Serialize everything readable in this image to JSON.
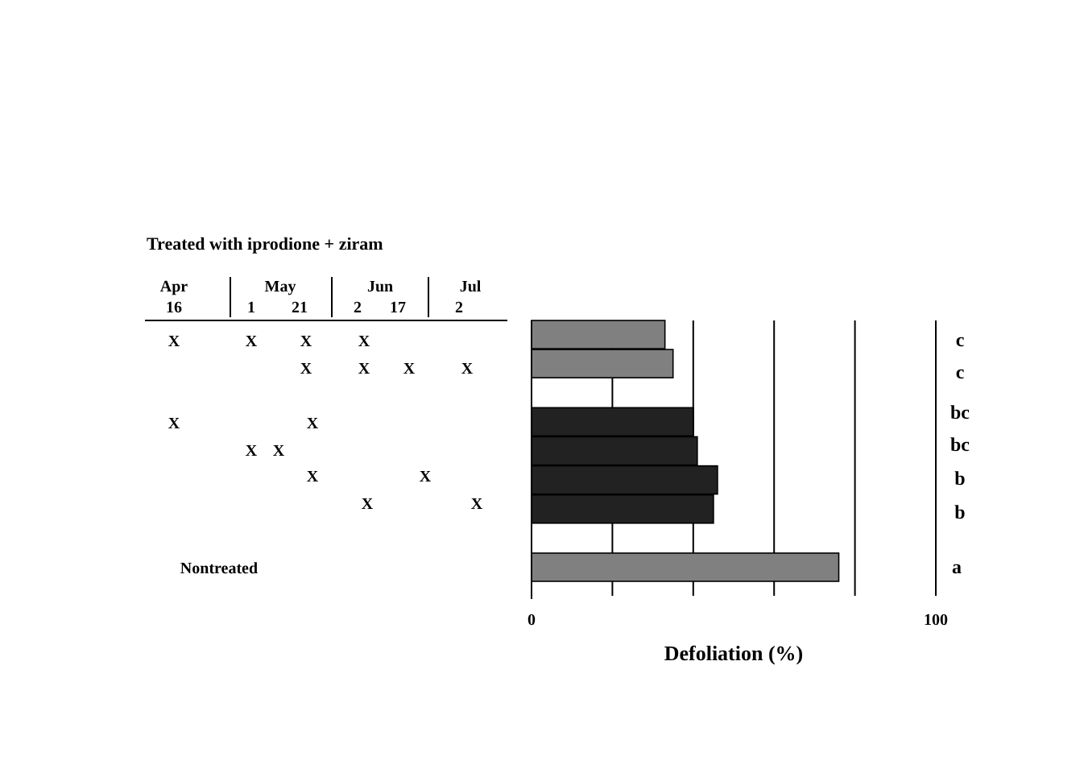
{
  "chart_data": {
    "type": "bar",
    "orientation": "horizontal",
    "title": "Treated with iprodione + ziram",
    "xlabel": "Defoliation (%)",
    "categories": [
      null,
      null,
      null,
      null,
      null,
      null,
      null,
      null,
      null
    ],
    "values": [
      33,
      35,
      null,
      40,
      41,
      46,
      45,
      null,
      76
    ],
    "colors": [
      "#808080",
      "#808080",
      null,
      "#222222",
      "#222222",
      "#222222",
      "#222222",
      null,
      "#808080"
    ],
    "xlim": [
      0,
      100
    ],
    "xticks": [
      0,
      {
        "value": 20,
        "label": null
      },
      {
        "value": 40,
        "label": null
      },
      {
        "value": 60,
        "label": null
      },
      {
        "value": 80,
        "label": null
      },
      100
    ],
    "grid": "x",
    "annotations": [
      "Apr",
      "May",
      "Jun",
      "Jul",
      "16",
      "1",
      "21",
      "2",
      "17",
      "2",
      "X",
      "X",
      "X",
      "X",
      "X",
      "X",
      "X",
      "X",
      "X",
      "X",
      "X",
      "X",
      "X",
      "X",
      "X",
      "X",
      "c",
      "c",
      "bc",
      "bc",
      "b",
      "b",
      "a",
      "Nontreated"
    ]
  }
}
